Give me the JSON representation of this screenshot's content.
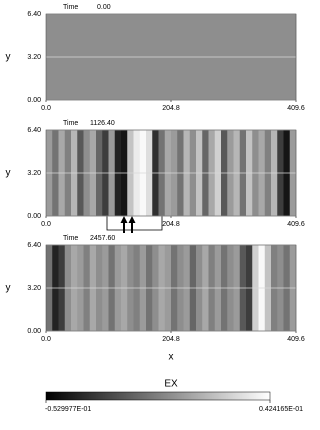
{
  "chart_data": [
    {
      "type": "heatmap",
      "time_label": "Time",
      "time": "0.00",
      "ylabel": "y",
      "xlim": [
        0,
        409.6
      ],
      "ylim": [
        0,
        6.4
      ],
      "xticks": [
        {
          "value": 0,
          "label": "0.0"
        },
        204.8,
        409.6
      ],
      "yticks": [
        {
          "value": 0,
          "label": "0.00"
        },
        {
          "value": 3.2,
          "label": "3.20"
        },
        {
          "value": 6.4,
          "label": "6.40"
        }
      ],
      "grid": true,
      "values": [
        0
      ]
    },
    {
      "type": "heatmap",
      "time_label": "Time",
      "time": "1126.40",
      "ylabel": "y",
      "xlim": [
        0,
        409.6
      ],
      "ylim": [
        0,
        6.4
      ],
      "xticks": [
        {
          "value": 0,
          "label": "0.0"
        },
        204.8,
        409.6
      ],
      "yticks": [
        {
          "value": 0,
          "label": "0.00"
        },
        {
          "value": 3.2,
          "label": "3.20"
        },
        {
          "value": 6.4,
          "label": "6.40"
        }
      ],
      "grid": true,
      "values": [
        0.005,
        -0.01,
        0.01,
        -0.005,
        0.015,
        -0.02,
        0,
        0.01,
        -0.015,
        -0.03,
        0.005,
        -0.04,
        -0.045,
        0.02,
        0.035,
        0.04,
        0.03,
        -0.035,
        -0.01,
        0.01,
        0.005,
        -0.01,
        0.015,
        0,
        0.02,
        -0.015,
        0.01,
        0.025,
        -0.02,
        0.005,
        0.015,
        -0.01,
        0.02,
        0,
        0.01,
        -0.005,
        0.015,
        -0.03,
        -0.045,
        0.005
      ]
    },
    {
      "type": "heatmap",
      "time_label": "Time",
      "time": "2457.60",
      "ylabel": "y",
      "xlabel": "x",
      "xlim": [
        0,
        409.6
      ],
      "ylim": [
        0,
        6.4
      ],
      "xticks": [
        {
          "value": 0,
          "label": "0.0"
        },
        204.8,
        409.6
      ],
      "yticks": [
        {
          "value": 0,
          "label": "0.00"
        },
        {
          "value": 3.2,
          "label": "3.20"
        },
        {
          "value": 6.4,
          "label": "6.40"
        }
      ],
      "grid": true,
      "values": [
        -0.01,
        -0.04,
        -0.03,
        0,
        0.01,
        0.005,
        -0.005,
        0.01,
        0,
        0.005,
        -0.01,
        0.005,
        0.01,
        0,
        -0.005,
        0.005,
        -0.01,
        0,
        0.01,
        0.005,
        -0.01,
        0,
        0.005,
        -0.015,
        0,
        0.01,
        -0.005,
        0.005,
        -0.01,
        0,
        0.005,
        -0.02,
        -0.03,
        0.025,
        0.04,
        0.02,
        -0.005,
        0,
        -0.01,
        0.005
      ]
    }
  ],
  "colorbar": {
    "title": "EX",
    "colors": [
      "#000000",
      "#ffffff"
    ],
    "ticks": [
      {
        "value": -0.0529977,
        "label": "-0.529977E-01"
      },
      {
        "value": 0.0424165,
        "label": "0.424165E-01"
      }
    ]
  }
}
